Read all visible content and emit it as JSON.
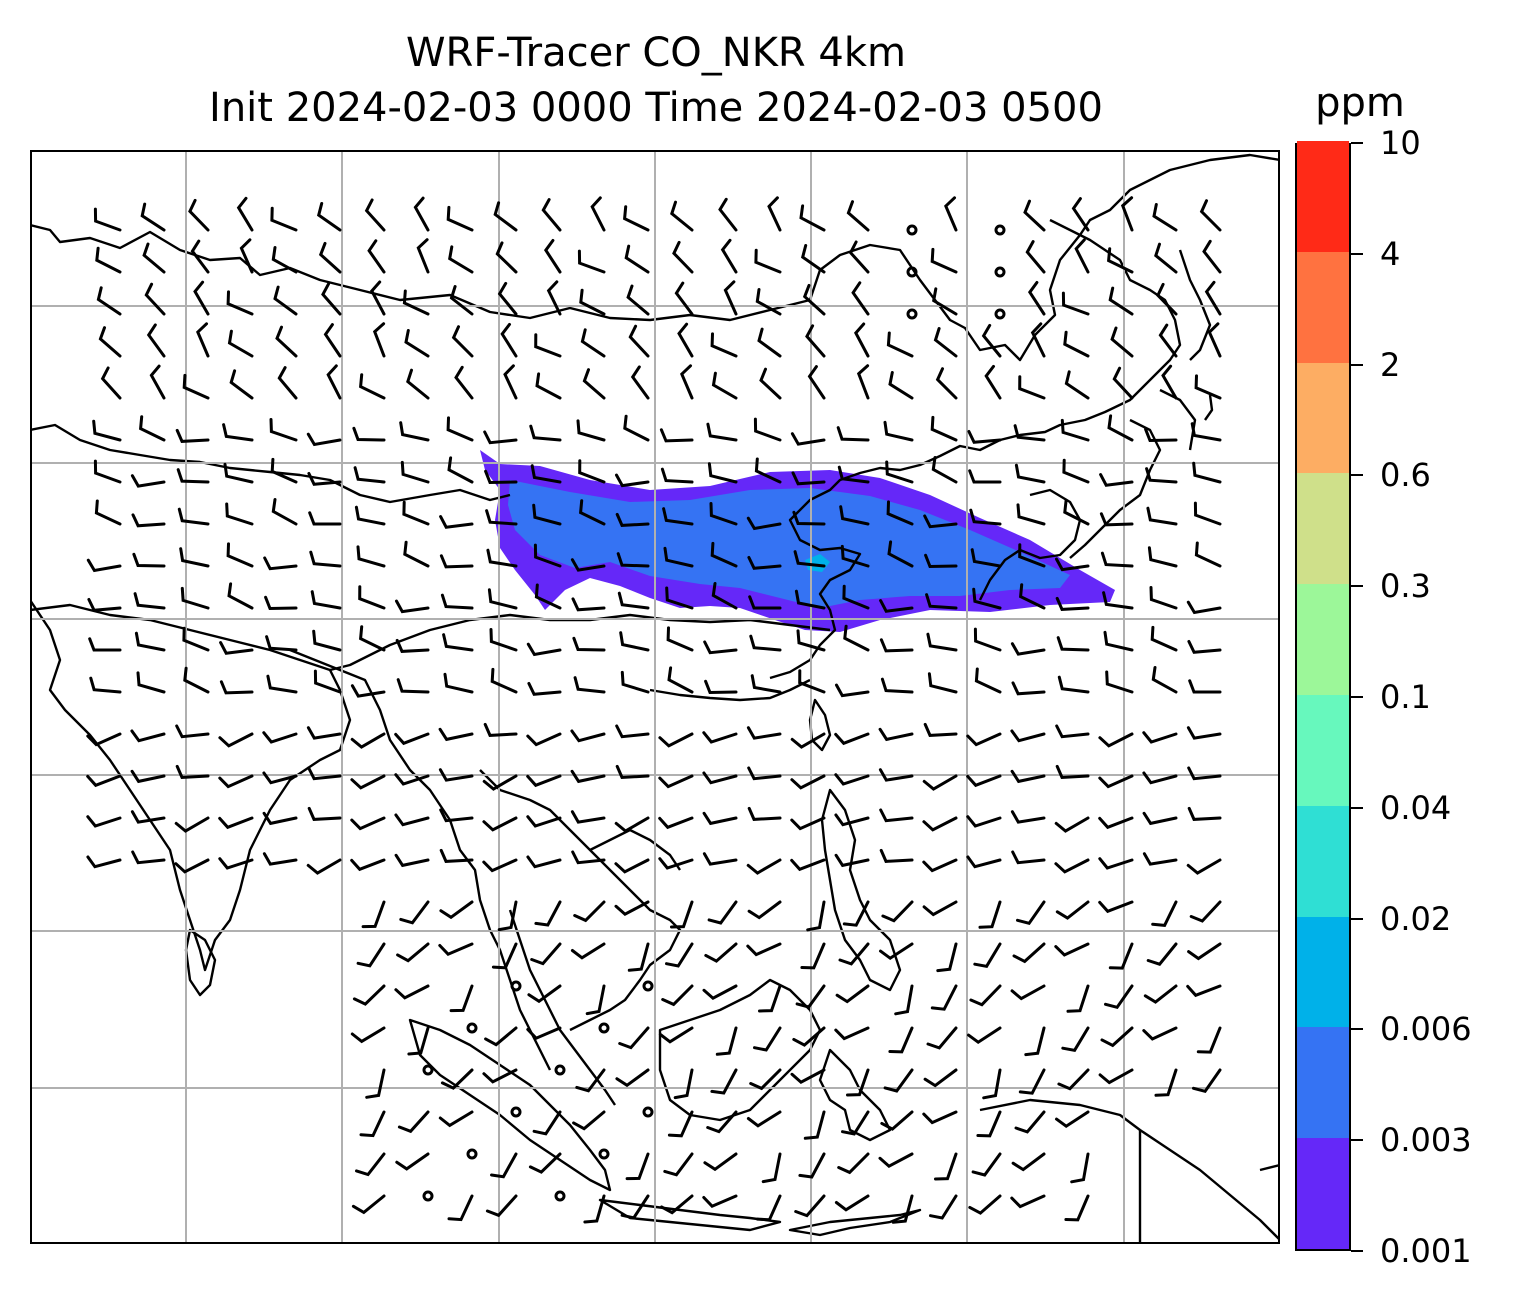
{
  "title": {
    "line1": "WRF-Tracer CO_NKR 4km",
    "line2": "Init 2024-02-03 0000 Time 2024-02-03 0500"
  },
  "colorbar": {
    "unit": "ppm",
    "levels": [
      "0.001",
      "0.003",
      "0.006",
      "0.02",
      "0.04",
      "0.1",
      "0.3",
      "0.6",
      "2",
      "4",
      "10"
    ],
    "colors": [
      "#6528f8",
      "#3573f3",
      "#00b1e9",
      "#2fdfd4",
      "#67f8bd",
      "#9cf799",
      "#cfe08a",
      "#fdad63",
      "#ff7240",
      "#ff2a17"
    ]
  },
  "map": {
    "field": "CO_NKR tracer concentration",
    "gridlines": "on",
    "wind": "barbs",
    "plume_colors": {
      "outer": "#6528f8",
      "inner": "#3573f3",
      "core": "#00b1e9"
    }
  }
}
